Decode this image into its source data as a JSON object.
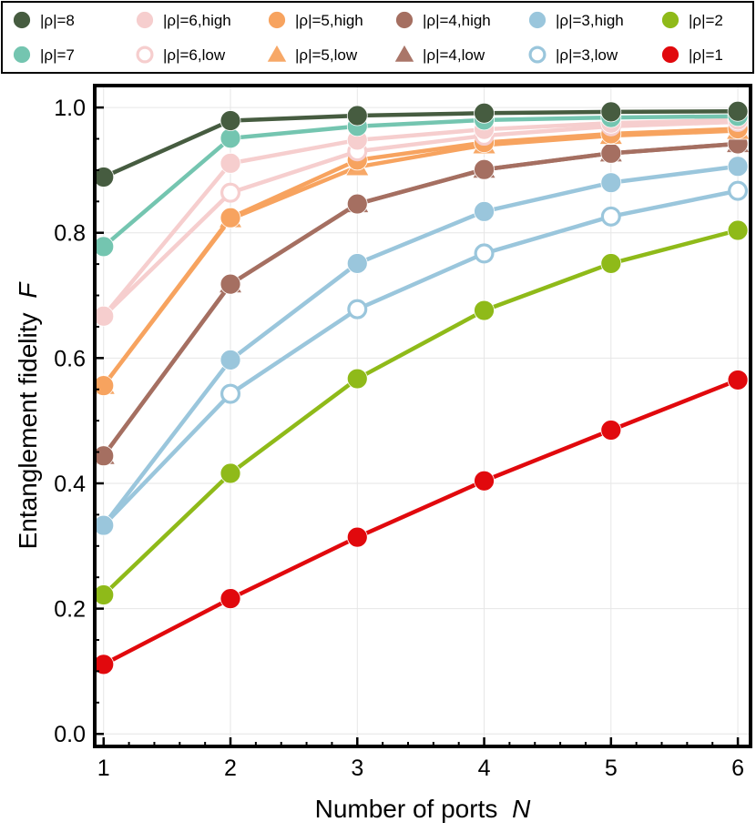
{
  "chart_data": {
    "type": "line",
    "xlabel": "Number of ports",
    "xlabel_var": "N",
    "ylabel": "Entanglement fidelity",
    "ylabel_var": "F",
    "xlim": [
      0.93,
      6.1
    ],
    "ylim": [
      -0.02,
      1.035
    ],
    "x": [
      1,
      2,
      3,
      4,
      5,
      6
    ],
    "xticks": [
      "1",
      "2",
      "3",
      "4",
      "5",
      "6"
    ],
    "yticks": [
      {
        "v": 0.0,
        "label": "0.0"
      },
      {
        "v": 0.2,
        "label": "0.2"
      },
      {
        "v": 0.4,
        "label": "0.4"
      },
      {
        "v": 0.6,
        "label": "0.6"
      },
      {
        "v": 0.8,
        "label": "0.8"
      },
      {
        "v": 1.0,
        "label": "1.0"
      }
    ],
    "grid": true,
    "legend_position": "top",
    "series": [
      {
        "name": "|ρ|=8",
        "color": "#465c40",
        "marker": "circle",
        "filled": true,
        "values": [
          0.889,
          0.979,
          0.987,
          0.991,
          0.993,
          0.994
        ]
      },
      {
        "name": "|ρ|=7",
        "color": "#74c5b0",
        "marker": "circle",
        "filled": true,
        "values": [
          0.778,
          0.951,
          0.97,
          0.98,
          0.984,
          0.986
        ]
      },
      {
        "name": "|ρ|=6,high",
        "color": "#f6cece",
        "marker": "circle",
        "filled": true,
        "values": [
          0.667,
          0.911,
          0.948,
          0.965,
          0.975,
          0.98
        ]
      },
      {
        "name": "|ρ|=6,low",
        "color": "#f6cece",
        "marker": "circle",
        "filled": false,
        "values": [
          0.667,
          0.864,
          0.93,
          0.955,
          0.97,
          0.977
        ]
      },
      {
        "name": "|ρ|=5,high",
        "color": "#f7a35f",
        "marker": "circle",
        "filled": true,
        "values": [
          0.556,
          0.824,
          0.916,
          0.944,
          0.958,
          0.966
        ]
      },
      {
        "name": "|ρ|=5,low",
        "color": "#f7a35f",
        "marker": "triangle",
        "filled": true,
        "values": [
          0.556,
          0.822,
          0.905,
          0.94,
          0.955,
          0.963
        ]
      },
      {
        "name": "|ρ|=4,high",
        "color": "#a56f61",
        "marker": "circle",
        "filled": true,
        "values": [
          0.444,
          0.718,
          0.846,
          0.901,
          0.927,
          0.942
        ]
      },
      {
        "name": "|ρ|=4,low",
        "color": "#a56f61",
        "marker": "triangle",
        "filled": true,
        "values": [
          0.444,
          0.718,
          0.846,
          0.901,
          0.927,
          0.942
        ]
      },
      {
        "name": "|ρ|=3,high",
        "color": "#9ac6dc",
        "marker": "circle",
        "filled": true,
        "values": [
          0.333,
          0.597,
          0.751,
          0.834,
          0.88,
          0.906
        ]
      },
      {
        "name": "|ρ|=3,low",
        "color": "#9ac6dc",
        "marker": "circle",
        "filled": false,
        "values": [
          0.333,
          0.543,
          0.678,
          0.767,
          0.826,
          0.867
        ]
      },
      {
        "name": "|ρ|=2",
        "color": "#8fba19",
        "marker": "circle",
        "filled": true,
        "values": [
          0.222,
          0.416,
          0.567,
          0.676,
          0.751,
          0.804
        ]
      },
      {
        "name": "|ρ|=1",
        "color": "#e1090d",
        "marker": "circle",
        "filled": true,
        "values": [
          0.111,
          0.216,
          0.314,
          0.404,
          0.485,
          0.565
        ]
      }
    ],
    "legend_order": [
      "|ρ|=8",
      "|ρ|=6,high",
      "|ρ|=5,high",
      "|ρ|=4,high",
      "|ρ|=3,high",
      "|ρ|=2",
      "|ρ|=7",
      "|ρ|=6,low",
      "|ρ|=5,low",
      "|ρ|=4,low",
      "|ρ|=3,low",
      "|ρ|=1"
    ]
  }
}
